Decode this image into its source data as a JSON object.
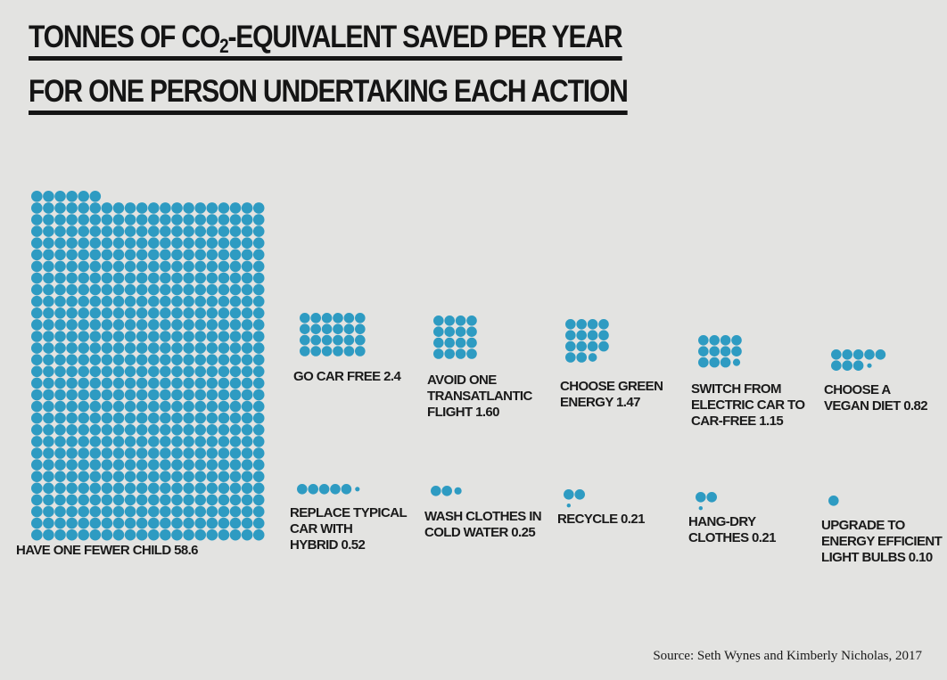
{
  "title_line1": "TONNES OF CO",
  "title_sub": "2",
  "title_line1_rest": "-EQUIVALENT SAVED PER YEAR",
  "title_line2": "FOR ONE PERSON UNDERTAKING EACH ACTION",
  "source": "Source: Seth Wynes and Kimberly Nicholas, 2017",
  "colors": {
    "dot": "#2e9bc2",
    "text": "#151515",
    "background": "#e3e3e1"
  },
  "chart_data": {
    "type": "unit-dot",
    "unit_note": "",
    "items": [
      {
        "label": "HAVE ONE FEWER CHILD 58.6",
        "value": 58.6
      },
      {
        "label": "GO CAR FREE 2.4",
        "value": 2.4
      },
      {
        "label": "AVOID ONE TRANSATLANTIC FLIGHT 1.60",
        "value": 1.6
      },
      {
        "label": "CHOOSE GREEN ENERGY 1.47",
        "value": 1.47
      },
      {
        "label": "SWITCH FROM ELECTRIC CAR TO CAR-FREE 1.15",
        "value": 1.15
      },
      {
        "label": "CHOOSE A VEGAN DIET 0.82",
        "value": 0.82
      },
      {
        "label": "REPLACE TYPICAL CAR WITH HYBRID 0.52",
        "value": 0.52
      },
      {
        "label": "WASH CLOTHES IN COLD WATER 0.25",
        "value": 0.25
      },
      {
        "label": "RECYCLE 0.21",
        "value": 0.21
      },
      {
        "label": "HANG-DRY CLOTHES 0.21",
        "value": 0.21
      },
      {
        "label": "UPGRADE TO ENERGY EFFICIENT LIGHT BULBS 0.10",
        "value": 0.1
      }
    ]
  },
  "labels": {
    "child": "HAVE ONE FEWER CHILD 58.6",
    "car_free": "GO CAR FREE 2.4",
    "flight": "AVOID ONE\nTRANSATLANTIC\nFLIGHT 1.60",
    "green_energy": "CHOOSE GREEN\nENERGY 1.47",
    "electric": "SWITCH FROM\nELECTRIC CAR TO\nCAR-FREE 1.15",
    "vegan": "CHOOSE A\nVEGAN DIET 0.82",
    "hybrid": "REPLACE TYPICAL\nCAR WITH\nHYBRID 0.52",
    "cold_water": "WASH CLOTHES IN\nCOLD WATER 0.25",
    "recycle": "RECYCLE 0.21",
    "hang_dry": "HANG-DRY\nCLOTHES 0.21",
    "bulbs": "UPGRADE TO\nENERGY EFFICIENT\nLIGHT BULBS 0.10"
  }
}
